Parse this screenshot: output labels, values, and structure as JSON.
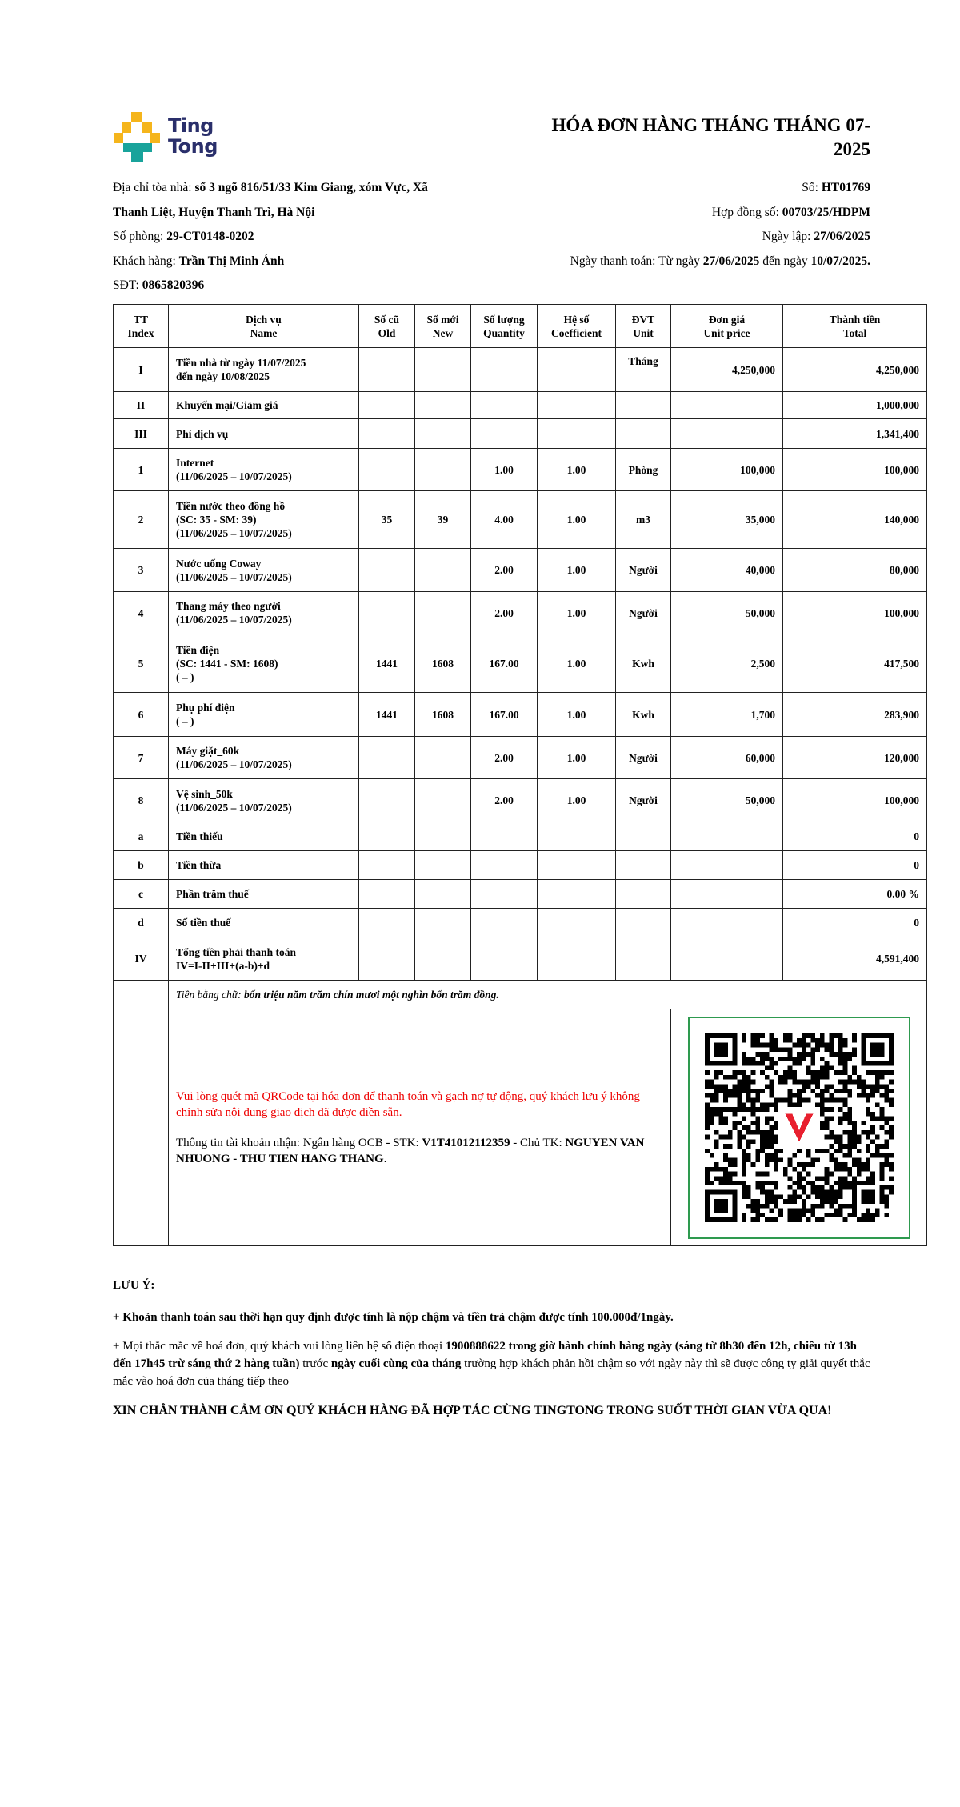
{
  "logo": {
    "text1": "Ting",
    "text2": "Tong",
    "colors": {
      "yellow": "#f5b51c",
      "teal": "#19a39b",
      "navy": "#2a2f6b"
    }
  },
  "title": "HÓA ĐƠN HÀNG THÁNG THÁNG 07-2025",
  "info": {
    "address_label": "Địa chỉ tòa nhà: ",
    "address_line1": "số 3 ngõ 816/51/33 Kim Giang, xóm Vực, Xã",
    "address_line2": "Thanh Liệt, Huyện Thanh Trì, Hà Nội",
    "room_label": "Số phòng: ",
    "room": "29-CT0148-0202",
    "customer_label": "Khách hàng: ",
    "customer": "Trần Thị Minh Ánh",
    "phone_label": "SĐT: ",
    "phone": "0865820396",
    "no_label": "Số: ",
    "no": "HT01769",
    "contract_label": "Hợp đồng số: ",
    "contract": "00703/25/HDPM",
    "date_label": "Ngày lập: ",
    "date": "27/06/2025",
    "pay_label": "Ngày thanh toán: Từ ngày ",
    "pay_from": "27/06/2025",
    "pay_mid": " đến ngày ",
    "pay_to": "10/07/2025."
  },
  "table": {
    "headers": [
      [
        "TT",
        "Index"
      ],
      [
        "Dịch vụ",
        "Name"
      ],
      [
        "Số cũ",
        "Old"
      ],
      [
        "Số mới",
        "New"
      ],
      [
        "Số lượng",
        "Quantity"
      ],
      [
        "Hệ số",
        "Coefficient"
      ],
      [
        "ĐVT",
        "Unit"
      ],
      [
        "Đơn giá",
        "Unit price"
      ],
      [
        "Thành tiền",
        "Total"
      ]
    ],
    "rows": [
      {
        "idx": "I",
        "name": [
          "Tiền nhà từ ngày 11/07/2025",
          "đến ngày 10/08/2025"
        ],
        "old": "",
        "new": "",
        "qty": "",
        "coef": "",
        "unit": "Tháng",
        "price": "4,250,000",
        "total": "4,250,000"
      },
      {
        "idx": "II",
        "name": [
          "Khuyến mại/Giảm giá"
        ],
        "old": "",
        "new": "",
        "qty": "",
        "coef": "",
        "unit": "",
        "price": "",
        "total": "1,000,000"
      },
      {
        "idx": "III",
        "name": [
          "Phí dịch vụ"
        ],
        "old": "",
        "new": "",
        "qty": "",
        "coef": "",
        "unit": "",
        "price": "",
        "total": "1,341,400"
      },
      {
        "idx": "1",
        "name": [
          "Internet",
          "(11/06/2025 – 10/07/2025)"
        ],
        "old": "",
        "new": "",
        "qty": "1.00",
        "coef": "1.00",
        "unit": "Phòng",
        "price": "100,000",
        "total": "100,000"
      },
      {
        "idx": "2",
        "name": [
          "Tiền nước theo đồng hồ",
          "(SC: 35 - SM: 39)",
          "(11/06/2025 – 10/07/2025)"
        ],
        "old": "35",
        "new": "39",
        "qty": "4.00",
        "coef": "1.00",
        "unit": "m3",
        "price": "35,000",
        "total": "140,000"
      },
      {
        "idx": "3",
        "name": [
          "Nước uống Coway",
          "(11/06/2025 – 10/07/2025)"
        ],
        "old": "",
        "new": "",
        "qty": "2.00",
        "coef": "1.00",
        "unit": "Người",
        "price": "40,000",
        "total": "80,000"
      },
      {
        "idx": "4",
        "name": [
          "Thang máy theo người",
          "(11/06/2025 – 10/07/2025)"
        ],
        "old": "",
        "new": "",
        "qty": "2.00",
        "coef": "1.00",
        "unit": "Người",
        "price": "50,000",
        "total": "100,000"
      },
      {
        "idx": "5",
        "name": [
          "Tiền điện",
          "(SC: 1441 - SM: 1608)",
          "( – )"
        ],
        "old": "1441",
        "new": "1608",
        "qty": "167.00",
        "coef": "1.00",
        "unit": "Kwh",
        "price": "2,500",
        "total": "417,500"
      },
      {
        "idx": "6",
        "name": [
          "Phụ phí điện",
          "( – )"
        ],
        "old": "1441",
        "new": "1608",
        "qty": "167.00",
        "coef": "1.00",
        "unit": "Kwh",
        "price": "1,700",
        "total": "283,900"
      },
      {
        "idx": "7",
        "name": [
          "Máy giặt_60k",
          "(11/06/2025 – 10/07/2025)"
        ],
        "old": "",
        "new": "",
        "qty": "2.00",
        "coef": "1.00",
        "unit": "Người",
        "price": "60,000",
        "total": "120,000"
      },
      {
        "idx": "8",
        "name": [
          "Vệ sinh_50k",
          "(11/06/2025 – 10/07/2025)"
        ],
        "old": "",
        "new": "",
        "qty": "2.00",
        "coef": "1.00",
        "unit": "Người",
        "price": "50,000",
        "total": "100,000"
      },
      {
        "idx": "a",
        "name": [
          "Tiền thiếu"
        ],
        "old": "",
        "new": "",
        "qty": "",
        "coef": "",
        "unit": "",
        "price": "",
        "total": "0"
      },
      {
        "idx": "b",
        "name": [
          "Tiền thừa"
        ],
        "old": "",
        "new": "",
        "qty": "",
        "coef": "",
        "unit": "",
        "price": "",
        "total": "0"
      },
      {
        "idx": "c",
        "name": [
          "Phần trăm thuế"
        ],
        "old": "",
        "new": "",
        "qty": "",
        "coef": "",
        "unit": "",
        "price": "",
        "total": "0.00 %"
      },
      {
        "idx": "d",
        "name": [
          "Số tiền thuế"
        ],
        "old": "",
        "new": "",
        "qty": "",
        "coef": "",
        "unit": "",
        "price": "",
        "total": "0"
      },
      {
        "idx": "IV",
        "name": [
          "Tổng tiền phải thanh toán",
          "IV=I-II+III+(a-b)+d"
        ],
        "old": "",
        "new": "",
        "qty": "",
        "coef": "",
        "unit": "",
        "price": "",
        "total": "4,591,400"
      }
    ],
    "words_label": "Tiền bằng chữ: ",
    "words": "bốn triệu năm trăm chín mươi một nghìn bốn trăm đồng."
  },
  "payment": {
    "notice": "Vui lòng quét mã QRCode tại hóa đơn để thanh toán và gạch nợ tự động, quý khách lưu ý không chỉnh sửa nội dung giao dịch đã được điền sẵn.",
    "acct_label": "Thông tin tài khoản nhận: Ngân hàng OCB - STK: ",
    "acct_no": "V1T41012112359",
    "owner_label": " - Chủ TK: ",
    "owner": "NGUYEN VAN NHUONG - THU TIEN HANG THANG",
    "owner_end": ".",
    "qr_border_color": "#2e9a4f",
    "qr_logo_color": "#e8202f"
  },
  "notes": {
    "heading": "LƯU Ý:",
    "late": "+ Khoản thanh toán sau thời hạn quy định được tính là nộp chậm và tiền trả chậm được tính 100.000đ/1ngày.",
    "q1": "+ Mọi thắc mắc về hoá đơn, quý khách vui lòng liên hệ số điện thoại ",
    "q2": "1900888622 trong giờ hành chính hàng ngày (sáng từ 8h30 đến 12h, chiều từ 13h đến 17h45 trừ sáng thứ 2 hàng tuần)",
    "q3": " trước ",
    "q4": "ngày cuối cùng của tháng",
    "q5": " trường hợp khách phản hồi chậm so với ngày này thì sẽ được công ty giải quyết thắc mắc vào hoá đơn của tháng tiếp theo",
    "thanks": "XIN CHÂN THÀNH CẢM ƠN QUÝ KHÁCH HÀNG ĐÃ HỢP TÁC CÙNG TINGTONG TRONG SUỐT THỜI GIAN VỪA QUA!"
  }
}
